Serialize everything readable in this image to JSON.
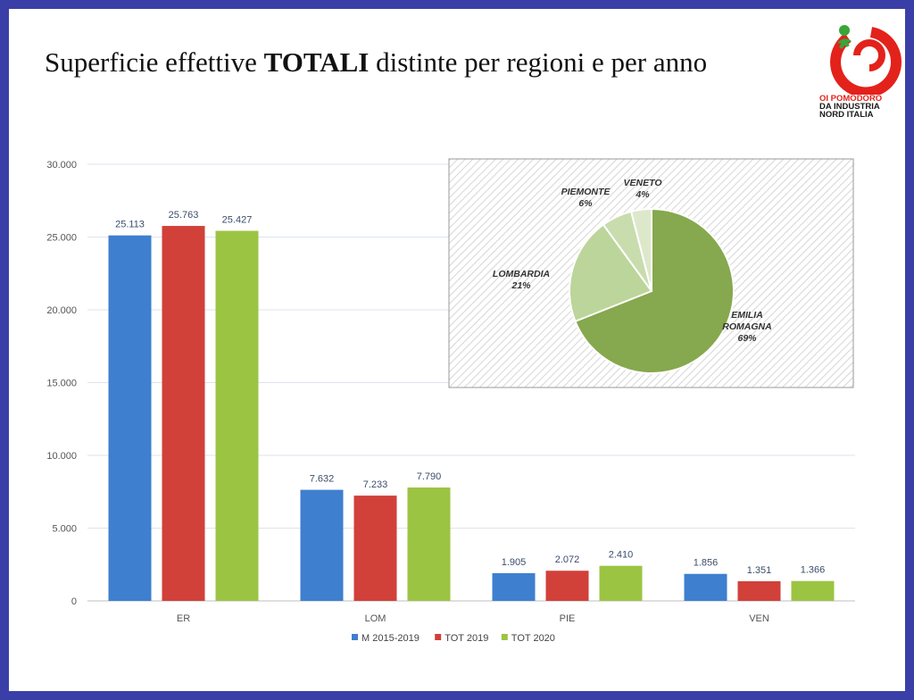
{
  "title": {
    "prefix": "Superficie effettive",
    "bold": "TOTALI",
    "suffix": "distinte per regioni e per anno"
  },
  "logo": {
    "line1": "OI POMODORO",
    "line2": "DA INDUSTRIA",
    "line3": "NORD ITALIA",
    "colors": {
      "red": "#e3221b",
      "green": "#3aa53a"
    }
  },
  "chart_data": [
    {
      "type": "bar",
      "categories": [
        "ER",
        "LOM",
        "PIE",
        "VEN"
      ],
      "series": [
        {
          "name": "M 2015-2019",
          "values": [
            25113,
            7632,
            1905,
            1856
          ],
          "labels": [
            "25.113",
            "7.632",
            "1.905",
            "1.856"
          ],
          "color": "#3e7fcf"
        },
        {
          "name": "TOT 2019",
          "values": [
            25763,
            7233,
            2072,
            1351
          ],
          "labels": [
            "25.763",
            "7.233",
            "2.072",
            "1.351"
          ],
          "color": "#d2403a"
        },
        {
          "name": "TOT 2020",
          "values": [
            25427,
            7790,
            2410,
            1366
          ],
          "labels": [
            "25.427",
            "7.790",
            "2.410",
            "1.366"
          ],
          "color": "#9cc443"
        }
      ],
      "ylim": [
        0,
        30000
      ],
      "yticks": [
        0,
        5000,
        10000,
        15000,
        20000,
        25000,
        30000
      ],
      "ytick_labels": [
        "0",
        "5.000",
        "10.000",
        "15.000",
        "20.000",
        "25.000",
        "30.000"
      ],
      "grid": true,
      "legend_position": "bottom"
    },
    {
      "type": "pie",
      "slices": [
        {
          "name": "EMILIA ROMAGNA",
          "value": 69,
          "label": "69%",
          "color": "#86a84e"
        },
        {
          "name": "LOMBARDIA",
          "value": 21,
          "label": "21%",
          "color": "#bcd59a"
        },
        {
          "name": "PIEMONTE",
          "value": 6,
          "label": "6%",
          "color": "#c9dcae"
        },
        {
          "name": "VENETO",
          "value": 4,
          "label": "4%",
          "color": "#dde8cb"
        }
      ],
      "background": "hatched"
    }
  ]
}
